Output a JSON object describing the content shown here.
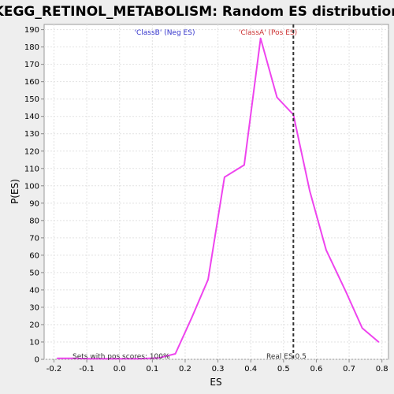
{
  "colors": {
    "background": "#eeeeee",
    "plot_background": "#ffffff",
    "series_line": "#ee44ee",
    "neg_label": "#3333cc",
    "pos_label": "#cc3333",
    "marker_line": "#333333"
  },
  "chart_data": {
    "type": "line",
    "title": "KEGG_RETINOL_METABOLISM: Random ES distribution",
    "xlabel": "ES",
    "ylabel": "P(ES)",
    "xlim": [
      -0.23,
      0.82
    ],
    "ylim": [
      0,
      193
    ],
    "grid": true,
    "x_ticks": [
      -0.2,
      -0.1,
      0.0,
      0.1,
      0.2,
      0.3,
      0.4,
      0.5,
      0.6,
      0.7,
      0.8
    ],
    "x_tick_labels": [
      "-0.2",
      "-0.1",
      "0.0",
      "0.1",
      "0.2",
      "0.3",
      "0.4",
      "0.5",
      "0.6",
      "0.7",
      "0.8"
    ],
    "y_ticks": [
      0,
      10,
      20,
      30,
      40,
      50,
      60,
      70,
      80,
      90,
      100,
      110,
      120,
      130,
      140,
      150,
      160,
      170,
      180,
      190
    ],
    "y_tick_labels": [
      "0",
      "10",
      "20",
      "30",
      "40",
      "50",
      "60",
      "70",
      "80",
      "90",
      "100",
      "110",
      "120",
      "130",
      "140",
      "150",
      "160",
      "170",
      "180",
      "190"
    ],
    "series": [
      {
        "x": [
          -0.19,
          -0.14,
          -0.09,
          -0.04,
          0.01,
          0.06,
          0.12,
          0.17,
          0.22,
          0.27,
          0.32,
          0.38,
          0.43,
          0.48,
          0.53,
          0.58,
          0.63,
          0.69,
          0.74,
          0.79
        ],
        "values": [
          0.6,
          0.6,
          0.3,
          0.3,
          0.3,
          0.3,
          0.8,
          3.2,
          24,
          46,
          105,
          112,
          185,
          151,
          141,
          97,
          63,
          39,
          18,
          10
        ]
      }
    ],
    "marker": {
      "x": 0.53,
      "label": "Real ES 0.5"
    },
    "annotations": {
      "neg_label": "'ClassB' (Neg ES)",
      "pos_label": "'ClassA' (Pos ES)",
      "pos_scores": "Sets with pos scores: 100%"
    }
  }
}
